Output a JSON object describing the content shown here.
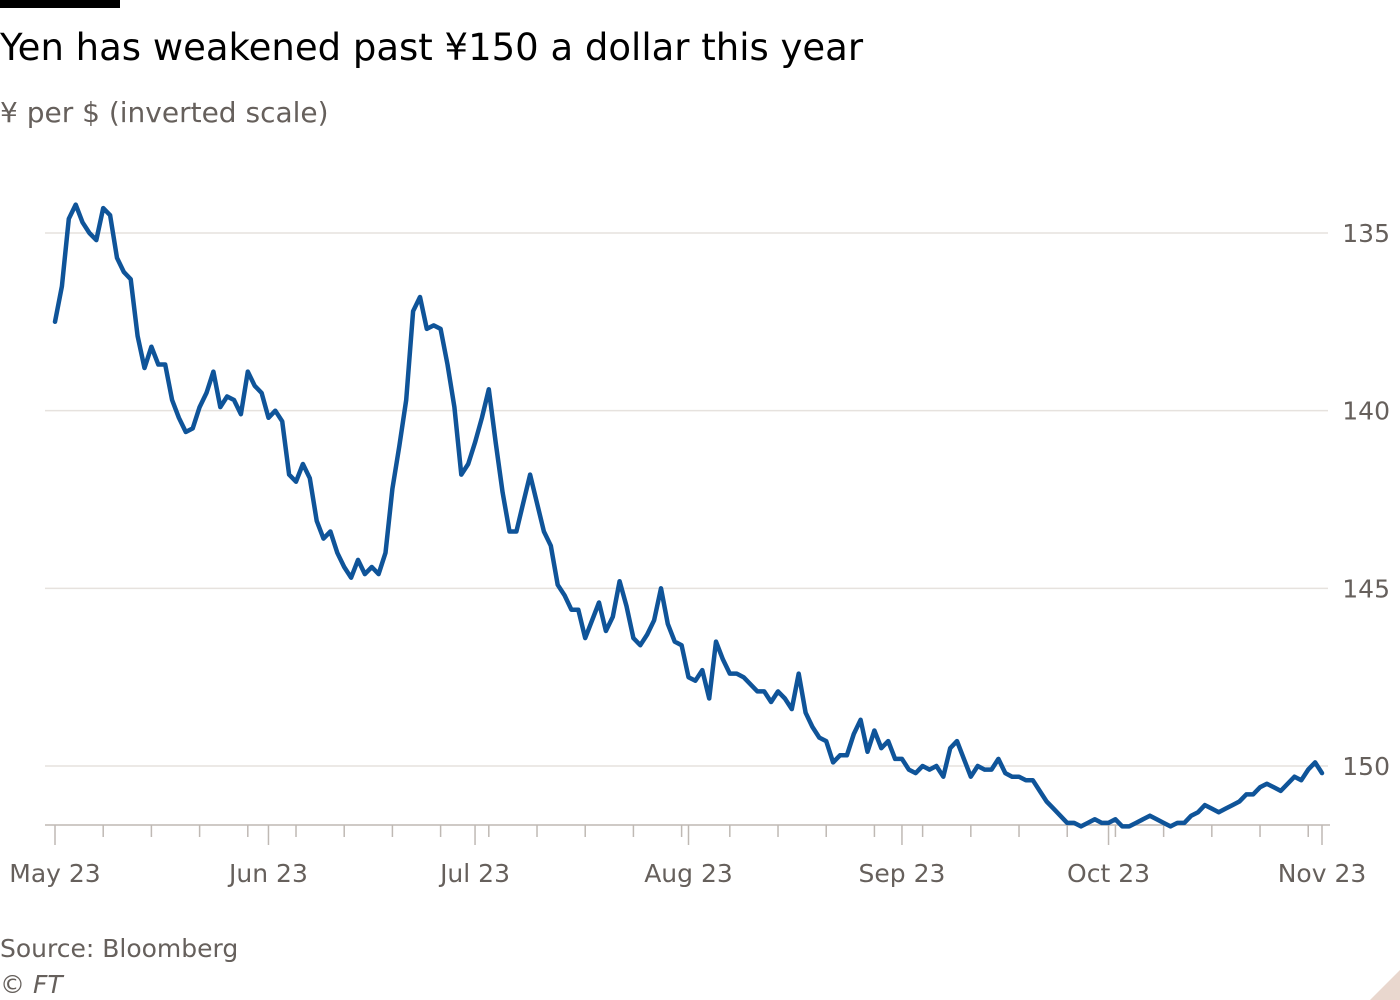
{
  "header": {
    "title": "Yen has weakened past ¥150 a dollar this year",
    "subtitle": "¥ per $ (inverted scale)"
  },
  "footer": {
    "source": "Source: Bloomberg",
    "copyright": "© FT"
  },
  "colors": {
    "line": "#0f5499",
    "grid": "#e6e2de",
    "axis": "#bfb9b4",
    "text": "#66605c"
  },
  "chart_data": {
    "type": "line",
    "title": "Yen has weakened past ¥150 a dollar this year",
    "subtitle": "¥ per $ (inverted scale)",
    "ylabel": "",
    "xlabel": "",
    "inverted_y": true,
    "ylim": [
      134,
      151.7
    ],
    "xlim": [
      "2023-05-01",
      "2023-11-01"
    ],
    "y_ticks": [
      135,
      140,
      145,
      150
    ],
    "y_tick_labels": [
      "135",
      "140",
      "145",
      "150"
    ],
    "grid": true,
    "x_tick_labels": [
      {
        "date": "2023-05-01",
        "label": "May 23"
      },
      {
        "date": "2023-06-01",
        "label": "Jun 23"
      },
      {
        "date": "2023-07-01",
        "label": "Jul 23"
      },
      {
        "date": "2023-08-01",
        "label": "Aug 23"
      },
      {
        "date": "2023-09-01",
        "label": "Sep 23"
      },
      {
        "date": "2023-10-01",
        "label": "Oct 23"
      },
      {
        "date": "2023-11-01",
        "label": "Nov 23"
      }
    ],
    "weekly_ticks": [
      "2023-05-08",
      "2023-05-15",
      "2023-05-22",
      "2023-05-29",
      "2023-06-05",
      "2023-06-12",
      "2023-06-19",
      "2023-06-26",
      "2023-07-03",
      "2023-07-10",
      "2023-07-17",
      "2023-07-24",
      "2023-07-31",
      "2023-08-07",
      "2023-08-14",
      "2023-08-21",
      "2023-08-28",
      "2023-09-04",
      "2023-09-11",
      "2023-09-18",
      "2023-09-25",
      "2023-10-02",
      "2023-10-09",
      "2023-10-16",
      "2023-10-23",
      "2023-10-30"
    ],
    "series": [
      {
        "points": [
          [
            "2023-05-01",
            137.5
          ],
          [
            "2023-05-02",
            136.5
          ],
          [
            "2023-05-03",
            134.6
          ],
          [
            "2023-05-04",
            134.2
          ],
          [
            "2023-05-05",
            134.7
          ],
          [
            "2023-05-06",
            135.0
          ],
          [
            "2023-05-07",
            135.2
          ],
          [
            "2023-05-08",
            134.3
          ],
          [
            "2023-05-09",
            134.5
          ],
          [
            "2023-05-10",
            135.7
          ],
          [
            "2023-05-11",
            136.1
          ],
          [
            "2023-05-12",
            136.3
          ],
          [
            "2023-05-13",
            137.9
          ],
          [
            "2023-05-14",
            138.8
          ],
          [
            "2023-05-15",
            138.2
          ],
          [
            "2023-05-16",
            138.7
          ],
          [
            "2023-05-17",
            138.7
          ],
          [
            "2023-05-18",
            139.7
          ],
          [
            "2023-05-19",
            140.2
          ],
          [
            "2023-05-20",
            140.6
          ],
          [
            "2023-05-21",
            140.5
          ],
          [
            "2023-05-22",
            139.9
          ],
          [
            "2023-05-23",
            139.5
          ],
          [
            "2023-05-24",
            138.9
          ],
          [
            "2023-05-25",
            139.9
          ],
          [
            "2023-05-26",
            139.6
          ],
          [
            "2023-05-27",
            139.7
          ],
          [
            "2023-05-28",
            140.1
          ],
          [
            "2023-05-29",
            138.9
          ],
          [
            "2023-05-30",
            139.3
          ],
          [
            "2023-05-31",
            139.5
          ],
          [
            "2023-06-01",
            140.2
          ],
          [
            "2023-06-02",
            140.0
          ],
          [
            "2023-06-03",
            140.3
          ],
          [
            "2023-06-04",
            141.8
          ],
          [
            "2023-06-05",
            142.0
          ],
          [
            "2023-06-06",
            141.5
          ],
          [
            "2023-06-07",
            141.9
          ],
          [
            "2023-06-08",
            143.1
          ],
          [
            "2023-06-09",
            143.6
          ],
          [
            "2023-06-10",
            143.4
          ],
          [
            "2023-06-11",
            144.0
          ],
          [
            "2023-06-12",
            144.4
          ],
          [
            "2023-06-13",
            144.7
          ],
          [
            "2023-06-14",
            144.2
          ],
          [
            "2023-06-15",
            144.6
          ],
          [
            "2023-06-16",
            144.4
          ],
          [
            "2023-06-17",
            144.6
          ],
          [
            "2023-06-18",
            144.0
          ],
          [
            "2023-06-19",
            142.2
          ],
          [
            "2023-06-20",
            141.0
          ],
          [
            "2023-06-21",
            139.7
          ],
          [
            "2023-06-22",
            137.2
          ],
          [
            "2023-06-23",
            136.8
          ],
          [
            "2023-06-24",
            137.7
          ],
          [
            "2023-06-25",
            137.6
          ],
          [
            "2023-06-26",
            137.7
          ],
          [
            "2023-06-27",
            138.7
          ],
          [
            "2023-06-28",
            139.9
          ],
          [
            "2023-06-29",
            141.8
          ],
          [
            "2023-06-30",
            141.5
          ],
          [
            "2023-07-01",
            140.9
          ],
          [
            "2023-07-02",
            140.2
          ],
          [
            "2023-07-03",
            139.4
          ],
          [
            "2023-07-04",
            140.9
          ],
          [
            "2023-07-05",
            142.3
          ],
          [
            "2023-07-06",
            143.4
          ],
          [
            "2023-07-07",
            143.4
          ],
          [
            "2023-07-08",
            142.6
          ],
          [
            "2023-07-09",
            141.8
          ],
          [
            "2023-07-10",
            142.6
          ],
          [
            "2023-07-11",
            143.4
          ],
          [
            "2023-07-12",
            143.8
          ],
          [
            "2023-07-13",
            144.9
          ],
          [
            "2023-07-14",
            145.2
          ],
          [
            "2023-07-15",
            145.6
          ],
          [
            "2023-07-16",
            145.6
          ],
          [
            "2023-07-17",
            146.4
          ],
          [
            "2023-07-18",
            145.9
          ],
          [
            "2023-07-19",
            145.4
          ],
          [
            "2023-07-20",
            146.2
          ],
          [
            "2023-07-21",
            145.8
          ],
          [
            "2023-07-22",
            144.8
          ],
          [
            "2023-07-23",
            145.5
          ],
          [
            "2023-07-24",
            146.4
          ],
          [
            "2023-07-25",
            146.6
          ],
          [
            "2023-07-26",
            146.3
          ],
          [
            "2023-07-27",
            145.9
          ],
          [
            "2023-07-28",
            145.0
          ],
          [
            "2023-07-29",
            146.0
          ],
          [
            "2023-07-30",
            146.5
          ],
          [
            "2023-07-31",
            146.6
          ],
          [
            "2023-08-01",
            147.5
          ],
          [
            "2023-08-02",
            147.6
          ],
          [
            "2023-08-03",
            147.3
          ],
          [
            "2023-08-04",
            148.1
          ],
          [
            "2023-08-05",
            146.5
          ],
          [
            "2023-08-06",
            147.0
          ],
          [
            "2023-08-07",
            147.4
          ],
          [
            "2023-08-08",
            147.4
          ],
          [
            "2023-08-09",
            147.5
          ],
          [
            "2023-08-10",
            147.7
          ],
          [
            "2023-08-11",
            147.9
          ],
          [
            "2023-08-12",
            147.9
          ],
          [
            "2023-08-13",
            148.2
          ],
          [
            "2023-08-14",
            147.9
          ],
          [
            "2023-08-15",
            148.1
          ],
          [
            "2023-08-16",
            148.4
          ],
          [
            "2023-08-17",
            147.4
          ],
          [
            "2023-08-18",
            148.5
          ],
          [
            "2023-08-19",
            148.9
          ],
          [
            "2023-08-20",
            149.2
          ],
          [
            "2023-08-21",
            149.3
          ],
          [
            "2023-08-22",
            149.9
          ],
          [
            "2023-08-23",
            149.7
          ],
          [
            "2023-08-24",
            149.7
          ],
          [
            "2023-08-25",
            149.1
          ],
          [
            "2023-08-26",
            148.7
          ],
          [
            "2023-08-27",
            149.6
          ],
          [
            "2023-08-28",
            149.0
          ],
          [
            "2023-08-29",
            149.5
          ],
          [
            "2023-08-30",
            149.3
          ],
          [
            "2023-08-31",
            149.8
          ],
          [
            "2023-09-01",
            149.8
          ],
          [
            "2023-09-02",
            150.1
          ],
          [
            "2023-09-03",
            150.2
          ],
          [
            "2023-09-04",
            150.0
          ],
          [
            "2023-09-05",
            150.1
          ],
          [
            "2023-09-06",
            150.0
          ],
          [
            "2023-09-07",
            150.3
          ],
          [
            "2023-09-08",
            149.5
          ],
          [
            "2023-09-09",
            149.3
          ],
          [
            "2023-09-10",
            149.8
          ],
          [
            "2023-09-11",
            150.3
          ],
          [
            "2023-09-12",
            150.0
          ],
          [
            "2023-09-13",
            150.1
          ],
          [
            "2023-09-14",
            150.1
          ],
          [
            "2023-09-15",
            149.8
          ],
          [
            "2023-09-16",
            150.2
          ],
          [
            "2023-09-17",
            150.3
          ],
          [
            "2023-09-18",
            150.3
          ],
          [
            "2023-09-19",
            150.4
          ],
          [
            "2023-09-20",
            150.4
          ],
          [
            "2023-09-21",
            150.7
          ],
          [
            "2023-09-22",
            151.0
          ],
          [
            "2023-09-23",
            151.2
          ],
          [
            "2023-09-24",
            151.4
          ],
          [
            "2023-09-25",
            151.6
          ],
          [
            "2023-09-26",
            151.6
          ],
          [
            "2023-09-27",
            151.7
          ],
          [
            "2023-09-28",
            151.6
          ],
          [
            "2023-09-29",
            151.5
          ],
          [
            "2023-09-30",
            151.6
          ],
          [
            "2023-10-01",
            151.6
          ],
          [
            "2023-10-02",
            151.5
          ],
          [
            "2023-10-03",
            151.7
          ],
          [
            "2023-10-04",
            151.7
          ],
          [
            "2023-10-05",
            151.6
          ],
          [
            "2023-10-06",
            151.5
          ],
          [
            "2023-10-07",
            151.4
          ],
          [
            "2023-10-08",
            151.5
          ],
          [
            "2023-10-09",
            151.6
          ],
          [
            "2023-10-10",
            151.7
          ],
          [
            "2023-10-11",
            151.6
          ],
          [
            "2023-10-12",
            151.6
          ],
          [
            "2023-10-13",
            151.4
          ],
          [
            "2023-10-14",
            151.3
          ],
          [
            "2023-10-15",
            151.1
          ],
          [
            "2023-10-16",
            151.2
          ],
          [
            "2023-10-17",
            151.3
          ],
          [
            "2023-10-18",
            151.2
          ],
          [
            "2023-10-19",
            151.1
          ],
          [
            "2023-10-20",
            151.0
          ],
          [
            "2023-10-21",
            150.8
          ],
          [
            "2023-10-22",
            150.8
          ],
          [
            "2023-10-23",
            150.6
          ],
          [
            "2023-10-24",
            150.5
          ],
          [
            "2023-10-25",
            150.6
          ],
          [
            "2023-10-26",
            150.7
          ],
          [
            "2023-10-27",
            150.5
          ],
          [
            "2023-10-28",
            150.3
          ],
          [
            "2023-10-29",
            150.4
          ],
          [
            "2023-10-30",
            150.1
          ],
          [
            "2023-10-31",
            149.9
          ],
          [
            "2023-11-01",
            150.2
          ]
        ]
      }
    ]
  }
}
